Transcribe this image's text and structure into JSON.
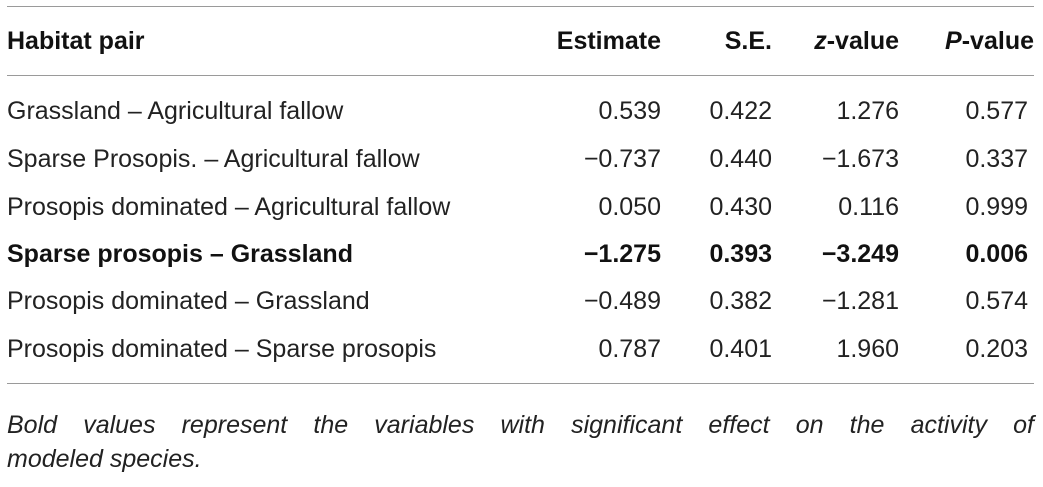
{
  "table": {
    "headers": {
      "pair": "Habitat pair",
      "estimate": "Estimate",
      "se": "S.E.",
      "z_italic": "z",
      "z_rest": "-value",
      "p_italic": "P",
      "p_rest": "-value"
    },
    "rows": [
      {
        "pair": "Grassland – Agricultural fallow",
        "estimate": "0.539",
        "se": "0.422",
        "z": "1.276",
        "p": "0.577",
        "bold": false
      },
      {
        "pair": "Sparse Prosopis. – Agricultural fallow",
        "estimate": "−0.737",
        "se": "0.440",
        "z": "−1.673",
        "p": "0.337",
        "bold": false
      },
      {
        "pair": "Prosopis dominated – Agricultural fallow",
        "estimate": "0.050",
        "se": "0.430",
        "z": "0.116",
        "p": "0.999",
        "bold": false
      },
      {
        "pair": "Sparse prosopis – Grassland",
        "estimate": "−1.275",
        "se": "0.393",
        "z": "−3.249",
        "p": "0.006",
        "bold": true
      },
      {
        "pair": "Prosopis dominated – Grassland",
        "estimate": "−0.489",
        "se": "0.382",
        "z": "−1.281",
        "p": "0.574",
        "bold": false
      },
      {
        "pair": "Prosopis dominated – Sparse prosopis",
        "estimate": "0.787",
        "se": "0.401",
        "z": "1.960",
        "p": "0.203",
        "bold": false
      }
    ]
  },
  "footnote": {
    "line1": "Bold values represent the variables with significant effect on the activity of",
    "line2": "modeled species."
  }
}
